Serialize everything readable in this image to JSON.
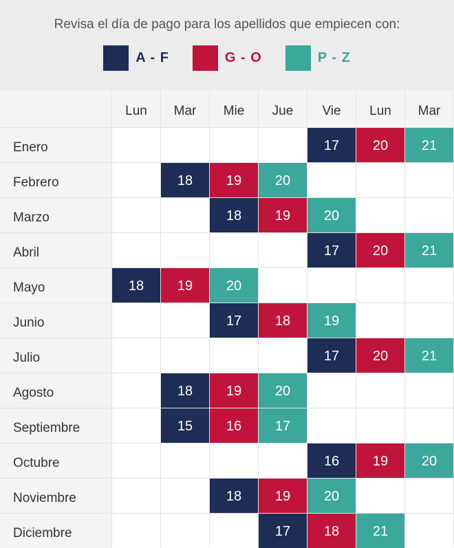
{
  "subtitle": "Revisa el día de pago para los apellidos que empiecen con:",
  "legend": [
    {
      "label": "A - F",
      "color": "#1e2d55"
    },
    {
      "label": "G - O",
      "color": "#c0143c"
    },
    {
      "label": "P - Z",
      "color": "#3ca89b"
    }
  ],
  "colors": {
    "header_bg": "#ececec",
    "grid_line": "#e2e2e2",
    "label_bg": "#f4f4f3",
    "text": "#333333"
  },
  "chart_data": {
    "type": "table",
    "columns": [
      "Lun",
      "Mar",
      "Mie",
      "Jue",
      "Vie",
      "Lun",
      "Mar"
    ],
    "rows": [
      {
        "month": "Enero",
        "start_col": 4,
        "days": [
          17,
          20,
          21
        ]
      },
      {
        "month": "Febrero",
        "start_col": 1,
        "days": [
          18,
          19,
          20
        ]
      },
      {
        "month": "Marzo",
        "start_col": 2,
        "days": [
          18,
          19,
          20
        ]
      },
      {
        "month": "Abril",
        "start_col": 4,
        "days": [
          17,
          20,
          21
        ]
      },
      {
        "month": "Mayo",
        "start_col": 0,
        "days": [
          18,
          19,
          20
        ]
      },
      {
        "month": "Junio",
        "start_col": 2,
        "days": [
          17,
          18,
          19
        ]
      },
      {
        "month": "Julio",
        "start_col": 4,
        "days": [
          17,
          20,
          21
        ]
      },
      {
        "month": "Agosto",
        "start_col": 1,
        "days": [
          18,
          19,
          20
        ]
      },
      {
        "month": "Septiembre",
        "start_col": 1,
        "days": [
          15,
          16,
          17
        ]
      },
      {
        "month": "Octubre",
        "start_col": 4,
        "days": [
          16,
          19,
          20
        ]
      },
      {
        "month": "Noviembre",
        "start_col": 2,
        "days": [
          18,
          19,
          20
        ]
      },
      {
        "month": "Diciembre",
        "start_col": 3,
        "days": [
          17,
          18,
          21
        ]
      }
    ]
  }
}
